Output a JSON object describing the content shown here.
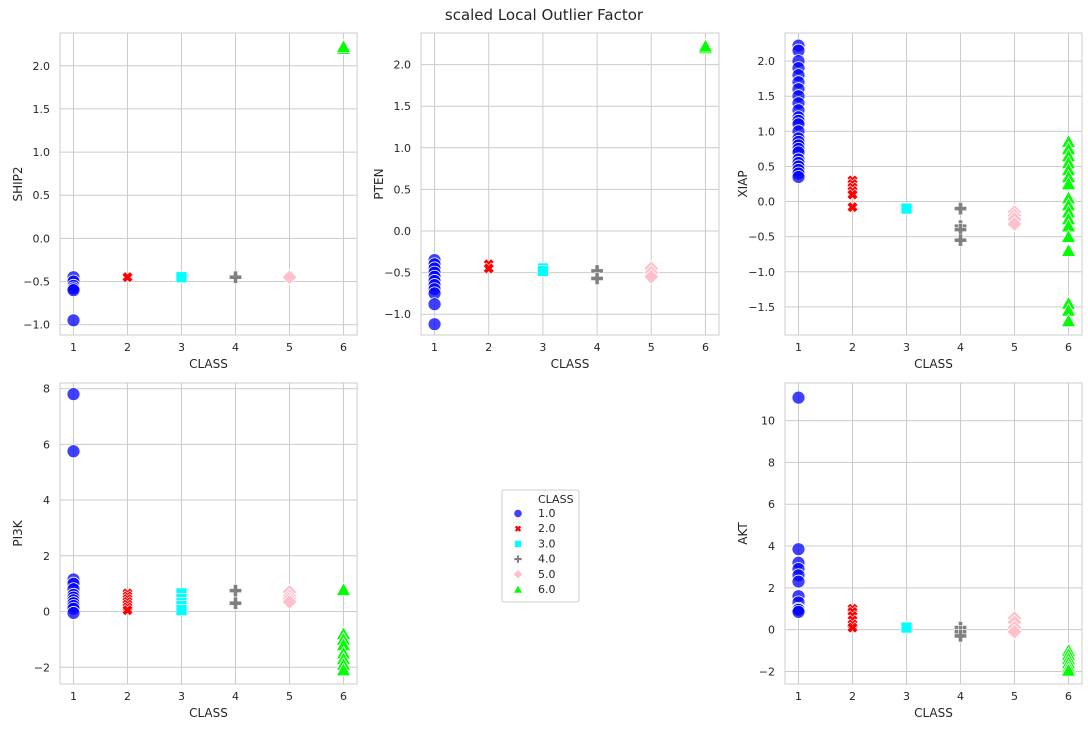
{
  "figure": {
    "suptitle": "scaled Local Outlier Factor"
  },
  "colors": {
    "1.0": "#0000ff",
    "2.0": "#ff0000",
    "3.0": "#00ffff",
    "4.0": "#808080",
    "5.0": "#ffc0cb",
    "6.0": "#00ff00",
    "grid": "#cccccc",
    "spine": "#cccccc"
  },
  "chart_data": [
    {
      "type": "scatter",
      "xlabel": "CLASS",
      "ylabel": "SHIP2",
      "xticks": [
        1,
        2,
        3,
        4,
        5,
        6
      ],
      "ylim": [
        -1.12,
        2.38
      ],
      "yticks": [
        -1.0,
        -0.5,
        0.0,
        0.5,
        1.0,
        1.5,
        2.0
      ],
      "ytick_labels": [
        "−1.0",
        "−0.5",
        "0.0",
        "0.5",
        "1.0",
        "1.5",
        "2.0"
      ],
      "series": [
        {
          "name": "1.0",
          "marker": "circle",
          "x": [
            1,
            1,
            1,
            1,
            1,
            1
          ],
          "y": [
            -0.45,
            -0.5,
            -0.55,
            -0.58,
            -0.6,
            -0.95
          ]
        },
        {
          "name": "2.0",
          "marker": "x",
          "x": [
            2
          ],
          "y": [
            -0.45
          ]
        },
        {
          "name": "3.0",
          "marker": "square",
          "x": [
            3
          ],
          "y": [
            -0.45
          ]
        },
        {
          "name": "4.0",
          "marker": "plus",
          "x": [
            4
          ],
          "y": [
            -0.45
          ]
        },
        {
          "name": "5.0",
          "marker": "diamond",
          "x": [
            5
          ],
          "y": [
            -0.45
          ]
        },
        {
          "name": "6.0",
          "marker": "triangle",
          "x": [
            6,
            6
          ],
          "y": [
            2.2,
            2.22
          ]
        }
      ]
    },
    {
      "type": "scatter",
      "xlabel": "CLASS",
      "ylabel": "PTEN",
      "xticks": [
        1,
        2,
        3,
        4,
        5,
        6
      ],
      "ylim": [
        -1.25,
        2.38
      ],
      "yticks": [
        -1.0,
        -0.5,
        0.0,
        0.5,
        1.0,
        1.5,
        2.0
      ],
      "ytick_labels": [
        "−1.0",
        "−0.5",
        "0.0",
        "0.5",
        "1.0",
        "1.5",
        "2.0"
      ],
      "series": [
        {
          "name": "1.0",
          "marker": "circle",
          "x": [
            1,
            1,
            1,
            1,
            1,
            1,
            1,
            1,
            1,
            1,
            1
          ],
          "y": [
            -0.35,
            -0.4,
            -0.45,
            -0.5,
            -0.55,
            -0.6,
            -0.65,
            -0.7,
            -0.75,
            -0.88,
            -1.12
          ]
        },
        {
          "name": "2.0",
          "marker": "x",
          "x": [
            2,
            2
          ],
          "y": [
            -0.4,
            -0.45
          ]
        },
        {
          "name": "3.0",
          "marker": "square",
          "x": [
            3,
            3
          ],
          "y": [
            -0.45,
            -0.48
          ]
        },
        {
          "name": "4.0",
          "marker": "plus",
          "x": [
            4,
            4
          ],
          "y": [
            -0.48,
            -0.57
          ]
        },
        {
          "name": "5.0",
          "marker": "diamond",
          "x": [
            5,
            5,
            5
          ],
          "y": [
            -0.45,
            -0.5,
            -0.55
          ]
        },
        {
          "name": "6.0",
          "marker": "triangle",
          "x": [
            6,
            6
          ],
          "y": [
            2.2,
            2.22
          ]
        }
      ]
    },
    {
      "type": "scatter",
      "xlabel": "CLASS",
      "ylabel": "XIAP",
      "xticks": [
        1,
        2,
        3,
        4,
        5,
        6
      ],
      "ylim": [
        -1.9,
        2.4
      ],
      "yticks": [
        -1.5,
        -1.0,
        -0.5,
        0.0,
        0.5,
        1.0,
        1.5,
        2.0
      ],
      "ytick_labels": [
        "−1.5",
        "−1.0",
        "−0.5",
        "0.0",
        "0.5",
        "1.0",
        "1.5",
        "2.0"
      ],
      "series": [
        {
          "name": "1.0",
          "marker": "circle",
          "x": [
            1,
            1,
            1,
            1,
            1,
            1,
            1,
            1,
            1,
            1,
            1,
            1,
            1,
            1,
            1,
            1,
            1,
            1,
            1,
            1,
            1,
            1,
            1,
            1,
            1
          ],
          "y": [
            2.22,
            2.15,
            2.0,
            1.9,
            1.8,
            1.7,
            1.6,
            1.5,
            1.4,
            1.3,
            1.2,
            1.15,
            1.1,
            1.0,
            0.9,
            0.85,
            0.8,
            0.75,
            0.7,
            0.6,
            0.55,
            0.5,
            0.45,
            0.4,
            0.35
          ]
        },
        {
          "name": "2.0",
          "marker": "x",
          "x": [
            2,
            2,
            2,
            2,
            2,
            2
          ],
          "y": [
            0.3,
            0.25,
            0.2,
            0.15,
            0.1,
            -0.08
          ]
        },
        {
          "name": "3.0",
          "marker": "square",
          "x": [
            3
          ],
          "y": [
            -0.1
          ]
        },
        {
          "name": "4.0",
          "marker": "plus",
          "x": [
            4,
            4,
            4,
            4
          ],
          "y": [
            -0.1,
            -0.35,
            -0.4,
            -0.55
          ]
        },
        {
          "name": "5.0",
          "marker": "diamond",
          "x": [
            5,
            5,
            5,
            5
          ],
          "y": [
            -0.15,
            -0.2,
            -0.25,
            -0.32
          ]
        },
        {
          "name": "6.0",
          "marker": "triangle",
          "x": [
            6,
            6,
            6,
            6,
            6,
            6,
            6,
            6,
            6,
            6,
            6,
            6,
            6,
            6,
            6,
            6,
            6
          ],
          "y": [
            0.85,
            0.75,
            0.65,
            0.55,
            0.45,
            0.35,
            0.25,
            0.05,
            -0.05,
            -0.15,
            -0.25,
            -0.35,
            -0.5,
            -0.7,
            -1.45,
            -1.55,
            -1.7
          ]
        }
      ]
    },
    {
      "type": "scatter",
      "xlabel": "CLASS",
      "ylabel": "PI3K",
      "xticks": [
        1,
        2,
        3,
        4,
        5,
        6
      ],
      "ylim": [
        -2.6,
        8.2
      ],
      "yticks": [
        -2,
        0,
        2,
        4,
        6,
        8
      ],
      "ytick_labels": [
        "−2",
        "0",
        "2",
        "4",
        "6",
        "8"
      ],
      "series": [
        {
          "name": "1.0",
          "marker": "circle",
          "x": [
            1,
            1,
            1,
            1,
            1,
            1,
            1,
            1,
            1,
            1,
            1,
            1
          ],
          "y": [
            7.8,
            5.75,
            1.15,
            1.0,
            0.8,
            0.6,
            0.5,
            0.4,
            0.3,
            0.2,
            0.1,
            -0.05
          ]
        },
        {
          "name": "2.0",
          "marker": "x",
          "x": [
            2,
            2,
            2,
            2,
            2,
            2,
            2
          ],
          "y": [
            0.65,
            0.55,
            0.45,
            0.35,
            0.25,
            0.15,
            0.05
          ]
        },
        {
          "name": "3.0",
          "marker": "square",
          "x": [
            3,
            3,
            3,
            3,
            3
          ],
          "y": [
            0.65,
            0.45,
            0.3,
            0.2,
            0.05
          ]
        },
        {
          "name": "4.0",
          "marker": "plus",
          "x": [
            4,
            4
          ],
          "y": [
            0.75,
            0.3
          ]
        },
        {
          "name": "5.0",
          "marker": "diamond",
          "x": [
            5,
            5,
            5,
            5
          ],
          "y": [
            0.7,
            0.55,
            0.45,
            0.35
          ]
        },
        {
          "name": "6.0",
          "marker": "triangle",
          "x": [
            6,
            6,
            6,
            6,
            6,
            6,
            6,
            6
          ],
          "y": [
            0.78,
            -0.8,
            -1.0,
            -1.2,
            -1.5,
            -1.7,
            -1.9,
            -2.1
          ]
        }
      ]
    },
    {
      "type": "scatter",
      "xlabel": "CLASS",
      "ylabel": "AKT",
      "xticks": [
        1,
        2,
        3,
        4,
        5,
        6
      ],
      "ylim": [
        -2.6,
        11.8
      ],
      "yticks": [
        -2,
        0,
        2,
        4,
        6,
        8,
        10
      ],
      "ytick_labels": [
        "−2",
        "0",
        "2",
        "4",
        "6",
        "8",
        "10"
      ],
      "series": [
        {
          "name": "1.0",
          "marker": "circle",
          "x": [
            1,
            1,
            1,
            1,
            1,
            1,
            1,
            1,
            1,
            1,
            1
          ],
          "y": [
            11.1,
            3.85,
            3.2,
            2.9,
            2.6,
            2.3,
            1.6,
            1.3,
            1.0,
            0.95,
            0.85
          ]
        },
        {
          "name": "2.0",
          "marker": "x",
          "x": [
            2,
            2,
            2,
            2,
            2,
            2
          ],
          "y": [
            1.0,
            0.85,
            0.65,
            0.45,
            0.25,
            0.1
          ]
        },
        {
          "name": "3.0",
          "marker": "square",
          "x": [
            3
          ],
          "y": [
            0.1
          ]
        },
        {
          "name": "4.0",
          "marker": "plus",
          "x": [
            4,
            4,
            4
          ],
          "y": [
            0.1,
            -0.1,
            -0.3
          ]
        },
        {
          "name": "5.0",
          "marker": "diamond",
          "x": [
            5,
            5,
            5,
            5
          ],
          "y": [
            0.55,
            0.35,
            0.1,
            -0.1
          ]
        },
        {
          "name": "6.0",
          "marker": "triangle",
          "x": [
            6,
            6,
            6,
            6,
            6,
            6
          ],
          "y": [
            -1.0,
            -1.2,
            -1.4,
            -1.6,
            -1.8,
            -1.95
          ]
        }
      ]
    }
  ],
  "legend": {
    "title": "CLASS",
    "placement": "center of empty middle-bottom panel",
    "entries": [
      {
        "label": "1.0",
        "marker": "circle"
      },
      {
        "label": "2.0",
        "marker": "x"
      },
      {
        "label": "3.0",
        "marker": "square"
      },
      {
        "label": "4.0",
        "marker": "plus"
      },
      {
        "label": "5.0",
        "marker": "diamond"
      },
      {
        "label": "6.0",
        "marker": "triangle"
      }
    ]
  }
}
